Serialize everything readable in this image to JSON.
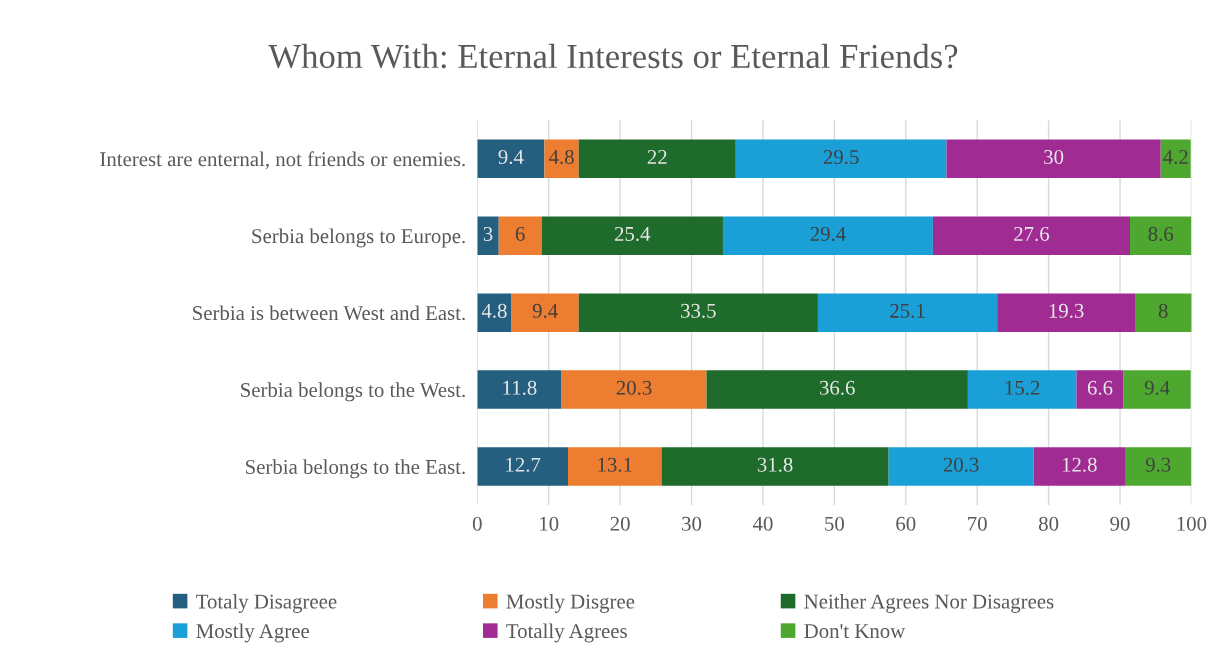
{
  "chart_data": {
    "type": "bar",
    "orientation": "horizontal",
    "stacked": true,
    "title": "Whom With: Eternal Interests or Eternal Friends?",
    "categories": [
      "Interest are enternal, not friends or enemies.",
      "Serbia belongs to Europe.",
      "Serbia is between West and East.",
      "Serbia belongs to the West.",
      "Serbia belongs to the East."
    ],
    "series": [
      {
        "name": "Totaly Disagreee",
        "color": "#245f80",
        "values": [
          9.4,
          3,
          4.8,
          11.8,
          12.7
        ]
      },
      {
        "name": "Mostly Disgree",
        "color": "#ed7d31",
        "values": [
          4.8,
          6,
          9.4,
          20.3,
          13.1
        ]
      },
      {
        "name": "Neither Agrees Nor Disagrees",
        "color": "#1f6b2b",
        "values": [
          22,
          25.4,
          33.5,
          36.6,
          31.8
        ]
      },
      {
        "name": "Mostly Agree",
        "color": "#1a9fd6",
        "values": [
          29.5,
          29.4,
          25.1,
          15.2,
          20.3
        ]
      },
      {
        "name": "Totally Agrees",
        "color": "#a02b93",
        "values": [
          30,
          27.6,
          19.3,
          6.6,
          12.8
        ]
      },
      {
        "name": "Don't Know",
        "color": "#4ea72e",
        "values": [
          4.2,
          8.6,
          8,
          9.4,
          9.3
        ]
      }
    ],
    "xlim": [
      0,
      100
    ],
    "xticks": [
      0,
      10,
      20,
      30,
      40,
      50,
      60,
      70,
      80,
      90,
      100
    ],
    "grid": "x",
    "legend": "bottom",
    "data_labels": true
  }
}
